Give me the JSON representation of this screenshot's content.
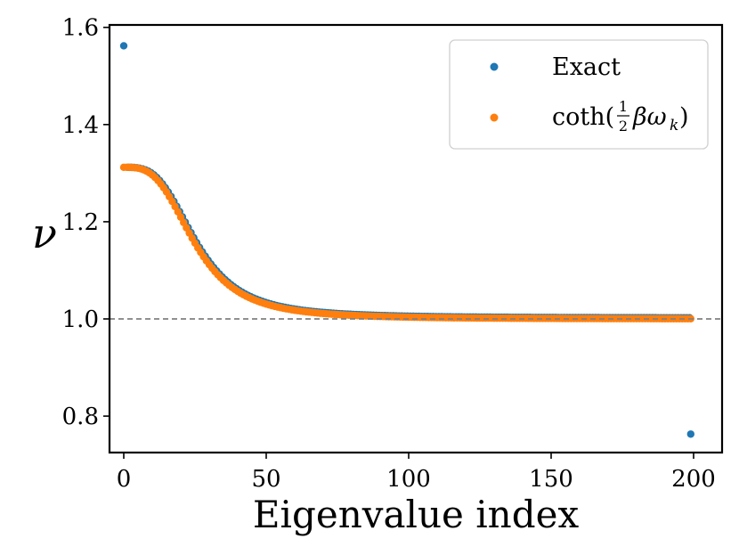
{
  "chart_data": {
    "type": "scatter",
    "title": "",
    "xlabel": "Eigenvalue index",
    "ylabel": "ν",
    "xlim": [
      -5,
      210
    ],
    "ylim": [
      0.725,
      1.605
    ],
    "x_ticks": [
      0,
      50,
      100,
      150,
      200
    ],
    "y_ticks": [
      0.8,
      1.0,
      1.2,
      1.4,
      1.6
    ],
    "x_tick_labels": [
      "0",
      "50",
      "100",
      "150",
      "200"
    ],
    "y_tick_labels": [
      "0.8",
      "1.0",
      "1.2",
      "1.4",
      "1.6"
    ],
    "reference_line": {
      "y": 1.0,
      "style": "dashed",
      "color": "#808080"
    },
    "legend_position": "top-right",
    "series": [
      {
        "name": "Exact",
        "color": "#1f77b4",
        "function": "1 + 0.31 / (1 + (k/25)^3.2), k = 1..198",
        "n": 200,
        "first": {
          "x": 0,
          "y": 1.562
        },
        "last": {
          "x": 199,
          "y": 0.763
        }
      },
      {
        "name": "coth(½βω_k)",
        "color": "#ff7f0e",
        "function": "1 + 0.312 / (1 + (k/25)^3.2), k = 0..199",
        "n": 200
      }
    ]
  }
}
